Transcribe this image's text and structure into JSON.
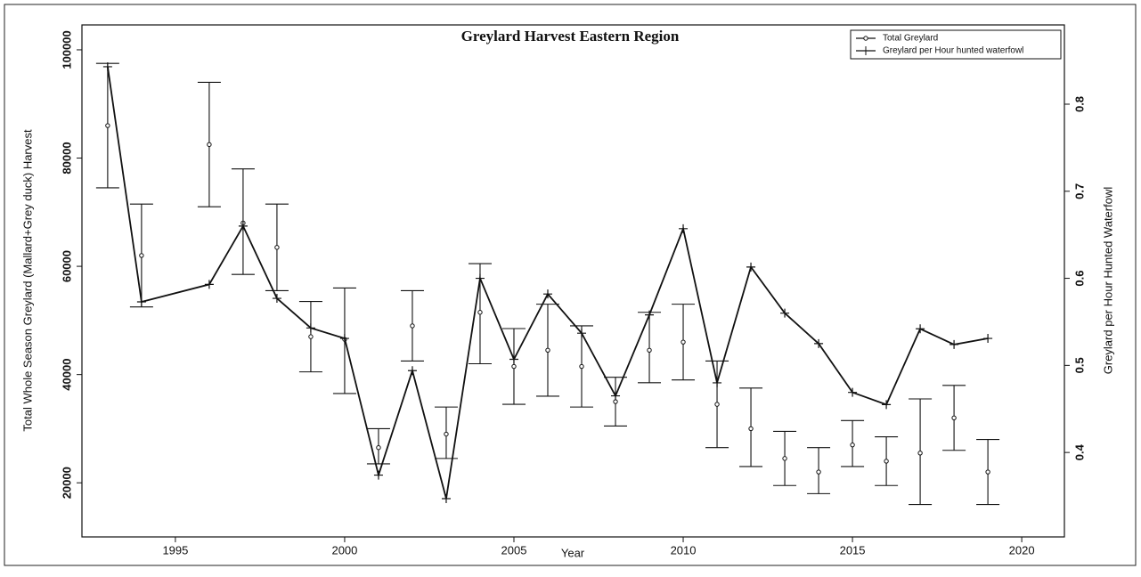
{
  "chart_data": {
    "type": "line",
    "title": "Greylard Harvest Eastern Region",
    "x_label": "Year",
    "y_label": "Total Whole Season Greylard (Mallard+Grey duck) Harvest",
    "y2_label": "Greylard per Hour Hunted Waterfowl",
    "xlim": [
      1992.24,
      2021.26
    ],
    "xticks": [
      1995,
      2000,
      2005,
      2010,
      2015,
      2020
    ],
    "ylim": [
      10000,
      104600
    ],
    "yticks": [
      20000,
      40000,
      60000,
      80000,
      100000
    ],
    "y2lim": [
      0.303,
      0.891
    ],
    "y2ticks": [
      0.4,
      0.5,
      0.6,
      0.7,
      0.8
    ],
    "legend": "upper right",
    "series": [
      {
        "name": "Total Greylard",
        "color": "#111111",
        "marker": "circle",
        "x": [
          1993,
          1994,
          1996,
          1997,
          1998,
          1999,
          2000,
          2001,
          2002,
          2003,
          2004,
          2005,
          2006,
          2007,
          2008,
          2009,
          2010,
          2011,
          2012,
          2013,
          2014,
          2015,
          2016,
          2017,
          2018,
          2019
        ],
        "values": [
          86000,
          62000,
          82500,
          68000,
          63500,
          47000,
          46500,
          26500,
          49000,
          29000,
          51500,
          41500,
          44500,
          41500,
          35000,
          44500,
          46000,
          34500,
          30000,
          24500,
          22000,
          27000,
          24000,
          25500,
          32000,
          22000
        ],
        "lower": [
          74500,
          52500,
          71000,
          58500,
          55500,
          40500,
          36500,
          23500,
          42500,
          24500,
          42000,
          34500,
          36000,
          34000,
          30500,
          38500,
          39000,
          26500,
          23000,
          19500,
          18000,
          23000,
          19500,
          16000,
          26000,
          16000
        ],
        "upper": [
          97500,
          71500,
          94000,
          78000,
          71500,
          53500,
          56000,
          30000,
          55500,
          34000,
          60500,
          48500,
          53000,
          49000,
          39500,
          51500,
          53000,
          42500,
          37500,
          29500,
          26500,
          31500,
          28500,
          35500,
          38000,
          28000
        ]
      },
      {
        "name": "Greylard per Hour hunted waterfowl",
        "color": "#111111",
        "marker": "plus",
        "axis": "y2",
        "x": [
          1993,
          1994,
          1996,
          1997,
          1998,
          1999,
          2000,
          2001,
          2002,
          2003,
          2004,
          2005,
          2006,
          2007,
          2008,
          2009,
          2010,
          2011,
          2012,
          2013,
          2014,
          2015,
          2016,
          2017,
          2018,
          2019
        ],
        "values": [
          0.843,
          0.573,
          0.593,
          0.66,
          0.577,
          0.543,
          0.531,
          0.374,
          0.494,
          0.347,
          0.6,
          0.507,
          0.582,
          0.537,
          0.465,
          0.558,
          0.657,
          0.48,
          0.613,
          0.56,
          0.525,
          0.469,
          0.455,
          0.542,
          0.524,
          0.531
        ]
      }
    ]
  }
}
